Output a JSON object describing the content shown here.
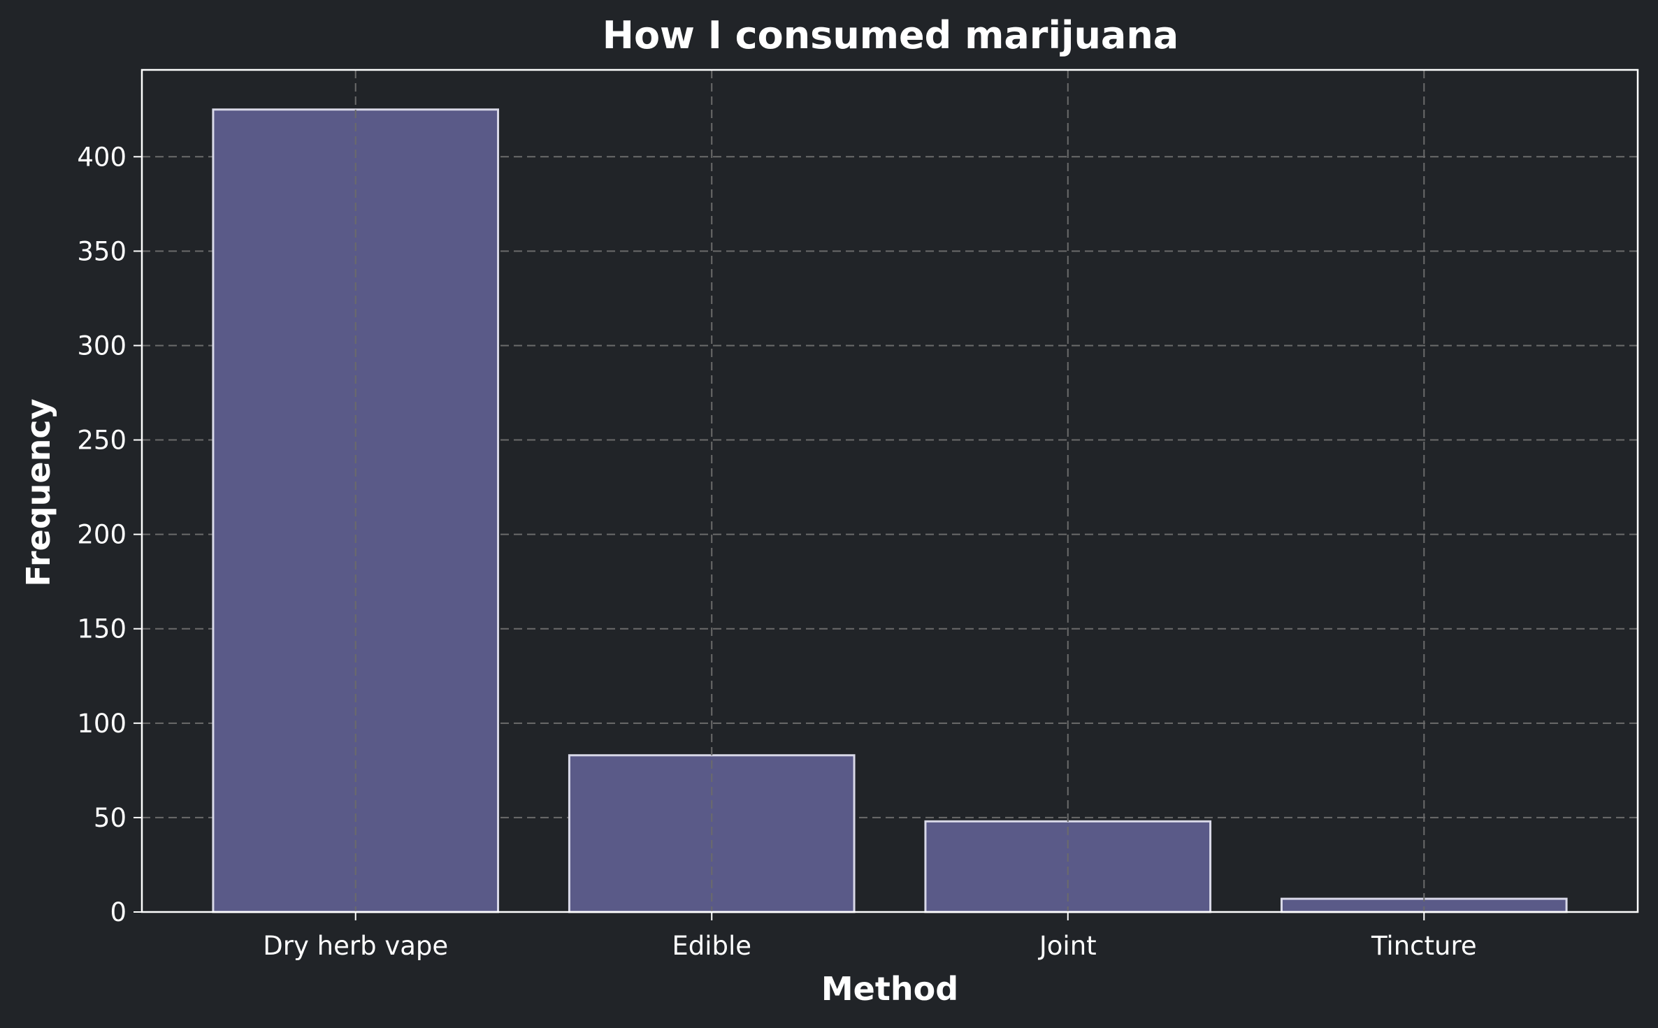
{
  "chart_data": {
    "type": "bar",
    "title": "How I consumed marijuana",
    "xlabel": "Method",
    "ylabel": "Frequency",
    "categories": [
      "Dry herb vape",
      "Edible",
      "Joint",
      "Tincture"
    ],
    "values": [
      425,
      83,
      48,
      7
    ],
    "ylim": [
      0,
      446
    ],
    "yticks": [
      0,
      50,
      100,
      150,
      200,
      250,
      300,
      350,
      400
    ],
    "grid": true,
    "colors": {
      "background": "#212428",
      "bar_fill": "#5a5a88",
      "bar_edge": "#d9d9e8",
      "grid": "#6b6b6b",
      "text": "#ffffff"
    }
  }
}
